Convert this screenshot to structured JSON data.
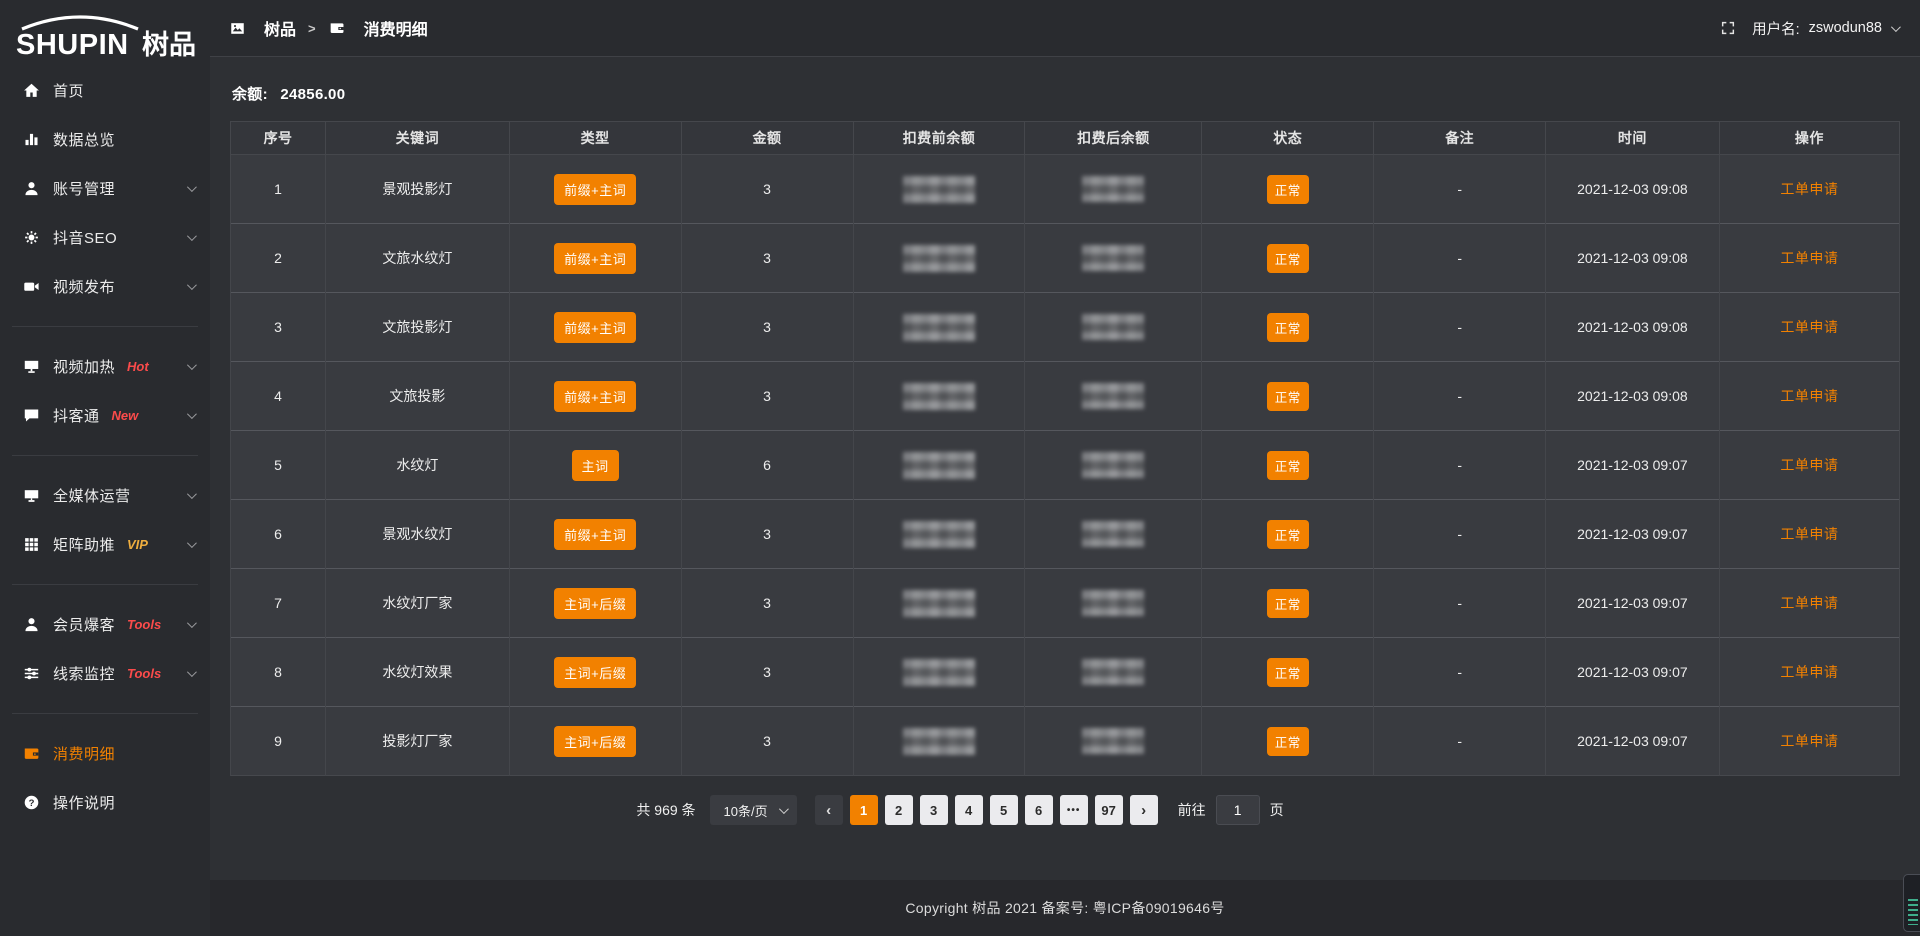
{
  "app": {
    "name_en": "SHUPIN",
    "name_cn": "树品"
  },
  "colors": {
    "accent": "#f28100",
    "hot_badge": "#fb4b4b",
    "vip_badge": "#efae3f"
  },
  "header": {
    "breadcrumb": [
      {
        "label": "树品"
      },
      {
        "label": "消费明细"
      }
    ],
    "separator": ">",
    "user_label": "用户名:",
    "username": "zswodun88"
  },
  "sidebar": {
    "items": [
      {
        "key": "home",
        "label": "首页",
        "icon": "home"
      },
      {
        "key": "data-overview",
        "label": "数据总览",
        "icon": "bar-chart"
      },
      {
        "key": "account-management",
        "label": "账号管理",
        "icon": "user",
        "chevron": true
      },
      {
        "key": "douyin-seo",
        "label": "抖音SEO",
        "icon": "gear",
        "chevron": true
      },
      {
        "key": "video-publish",
        "label": "视频发布",
        "icon": "video",
        "chevron": true
      },
      {
        "divider": true
      },
      {
        "key": "video-heat",
        "label": "视频加热",
        "icon": "screen",
        "badge": "Hot",
        "badge_color": "#fb4b4b",
        "chevron": true
      },
      {
        "key": "douketong",
        "label": "抖客通",
        "icon": "chat",
        "badge": "New",
        "badge_color": "#fb4b4b",
        "chevron": true
      },
      {
        "divider": true
      },
      {
        "key": "media-operation",
        "label": "全媒体运营",
        "icon": "monitor",
        "chevron": true
      },
      {
        "key": "matrix-boost",
        "label": "矩阵助推",
        "icon": "grid",
        "badge": "VIP",
        "badge_color": "#efae3f",
        "chevron": true
      },
      {
        "divider": true
      },
      {
        "key": "member-baoke",
        "label": "会员爆客",
        "icon": "user",
        "badge": "Tools",
        "badge_color": "#fb4b4b",
        "chevron": true
      },
      {
        "key": "clue-monitor",
        "label": "线索监控",
        "icon": "sliders",
        "badge": "Tools",
        "badge_color": "#fb4b4b",
        "chevron": true
      },
      {
        "divider": true
      },
      {
        "key": "consumption-detail",
        "label": "消费明细",
        "icon": "wallet",
        "active": true
      },
      {
        "key": "operation-guide",
        "label": "操作说明",
        "icon": "question"
      }
    ]
  },
  "main": {
    "balance_label": "余额:",
    "balance_value": "24856.00",
    "table": {
      "columns": [
        "序号",
        "关键词",
        "类型",
        "金额",
        "扣费前余额",
        "扣费后余额",
        "状态",
        "备注",
        "时间",
        "操作"
      ],
      "rows": [
        {
          "no": "1",
          "keyword": "景观投影灯",
          "type": "前缀+主词",
          "amount": "3",
          "status": "正常",
          "remark": "-",
          "time": "2021-12-03 09:08",
          "action": "工单申请"
        },
        {
          "no": "2",
          "keyword": "文旅水纹灯",
          "type": "前缀+主词",
          "amount": "3",
          "status": "正常",
          "remark": "-",
          "time": "2021-12-03 09:08",
          "action": "工单申请"
        },
        {
          "no": "3",
          "keyword": "文旅投影灯",
          "type": "前缀+主词",
          "amount": "3",
          "status": "正常",
          "remark": "-",
          "time": "2021-12-03 09:08",
          "action": "工单申请"
        },
        {
          "no": "4",
          "keyword": "文旅投影",
          "type": "前缀+主词",
          "amount": "3",
          "status": "正常",
          "remark": "-",
          "time": "2021-12-03 09:08",
          "action": "工单申请"
        },
        {
          "no": "5",
          "keyword": "水纹灯",
          "type": "主词",
          "amount": "6",
          "status": "正常",
          "remark": "-",
          "time": "2021-12-03 09:07",
          "action": "工单申请"
        },
        {
          "no": "6",
          "keyword": "景观水纹灯",
          "type": "前缀+主词",
          "amount": "3",
          "status": "正常",
          "remark": "-",
          "time": "2021-12-03 09:07",
          "action": "工单申请"
        },
        {
          "no": "7",
          "keyword": "水纹灯厂家",
          "type": "主词+后缀",
          "amount": "3",
          "status": "正常",
          "remark": "-",
          "time": "2021-12-03 09:07",
          "action": "工单申请"
        },
        {
          "no": "8",
          "keyword": "水纹灯效果",
          "type": "主词+后缀",
          "amount": "3",
          "status": "正常",
          "remark": "-",
          "time": "2021-12-03 09:07",
          "action": "工单申请"
        },
        {
          "no": "9",
          "keyword": "投影灯厂家",
          "type": "主词+后缀",
          "amount": "3",
          "status": "正常",
          "remark": "-",
          "time": "2021-12-03 09:07",
          "action": "工单申请"
        }
      ]
    },
    "pagination": {
      "total_label": "共 969 条",
      "page_size": "10条/页",
      "prev": "‹",
      "next": "›",
      "pages": [
        "1",
        "2",
        "3",
        "4",
        "5",
        "6",
        "•••",
        "97"
      ],
      "active_page": "1",
      "goto_label": "前往",
      "goto_value": "1",
      "goto_suffix": "页"
    }
  },
  "footer": {
    "copyright": "Copyright 树品 2021 备案号: 粤ICP备09019646号"
  }
}
